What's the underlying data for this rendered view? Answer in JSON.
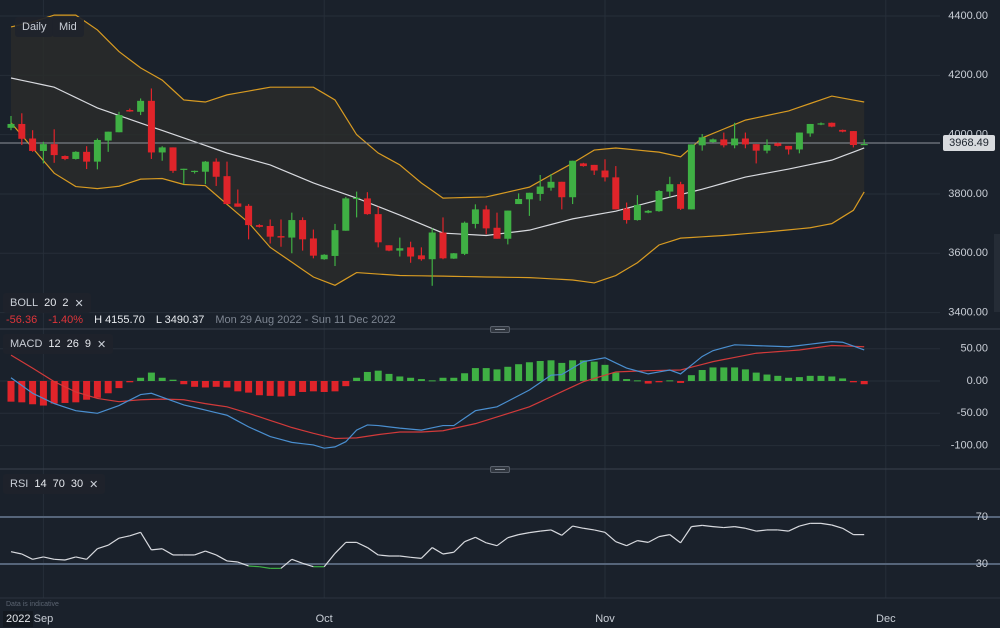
{
  "toolbar": {
    "interval_label": "Daily",
    "price_type_label": "Mid"
  },
  "indicators": {
    "boll": {
      "name": "BOLL",
      "period": "20",
      "stddev": "2",
      "close_icon": "close-icon"
    },
    "macd": {
      "name": "MACD",
      "fast": "12",
      "slow": "26",
      "signal": "9",
      "close_icon": "close-icon"
    },
    "rsi": {
      "name": "RSI",
      "period": "14",
      "overbought": "70",
      "oversold": "30",
      "close_icon": "close-icon"
    }
  },
  "summary": {
    "change": "-56.36",
    "change_pct": "-1.40%",
    "high": "H 4155.70",
    "low": "L 3490.37",
    "range": "Mon 29 Aug 2022 - Sun 11 Dec 2022"
  },
  "current_price": "3968.49",
  "footer": {
    "disclaimer": "Data is indicative",
    "year": "2022"
  },
  "colors": {
    "background": "#1a212b",
    "up": "#3fb044",
    "down": "#e0242a",
    "band": "#d89b22",
    "band_mid": "#d8dadf",
    "macd": "#4a8fd0",
    "signal": "#d23a3a",
    "rsi": "#d8dadf",
    "rsi_oversold": "#3fb044",
    "level_line": "#56657a",
    "grid": "#262e39"
  },
  "chart_data": [
    {
      "type": "candlestick",
      "panel": "price",
      "x_ticks": [
        "Sep",
        "Oct",
        "Nov",
        "Dec"
      ],
      "y_ticks": [
        "4400.00",
        "4200.00",
        "4000.00",
        "3800.00",
        "3600.00",
        "3400.00"
      ],
      "ylim": [
        3400,
        4400
      ],
      "grid": true,
      "candles_ohlc": [
        [
          4023,
          4063,
          4015,
          4036
        ],
        [
          4036,
          4072,
          3965,
          3986
        ],
        [
          3987,
          4015,
          3942,
          3945
        ],
        [
          3945,
          3976,
          3903,
          3968
        ],
        [
          3968,
          4018,
          3905,
          3931
        ],
        [
          3928,
          3930,
          3914,
          3918
        ],
        [
          3918,
          3944,
          3916,
          3942
        ],
        [
          3942,
          3961,
          3884,
          3909
        ],
        [
          3909,
          3987,
          3883,
          3982
        ],
        [
          3980,
          4010,
          3942,
          4010
        ],
        [
          4008,
          4077,
          4008,
          4066
        ],
        [
          4083,
          4088,
          4077,
          4078
        ],
        [
          4077,
          4122,
          4066,
          4114
        ],
        [
          4114,
          4155.7,
          3918,
          3940
        ],
        [
          3940,
          3961,
          3912,
          3957
        ],
        [
          3957,
          3957,
          3871,
          3878
        ],
        [
          3883,
          3885,
          3833,
          3885
        ],
        [
          3874,
          3879,
          3869,
          3878
        ],
        [
          3875,
          3911,
          3833,
          3909
        ],
        [
          3909,
          3920,
          3827,
          3858
        ],
        [
          3860,
          3909,
          3766,
          3766
        ],
        [
          3768,
          3815,
          3757,
          3757
        ],
        [
          3760,
          3766,
          3647,
          3695
        ],
        [
          3695,
          3698,
          3687,
          3689
        ],
        [
          3692,
          3714,
          3633,
          3656
        ],
        [
          3658,
          3714,
          3622,
          3653
        ],
        [
          3653,
          3737,
          3600,
          3712
        ],
        [
          3712,
          3721,
          3609,
          3647
        ],
        [
          3650,
          3680,
          3583,
          3592
        ],
        [
          3580,
          3597,
          3578,
          3595
        ],
        [
          3591,
          3699,
          3557,
          3678
        ],
        [
          3676,
          3790,
          3676,
          3785
        ],
        [
          3783,
          3808,
          3721,
          3787
        ],
        [
          3785,
          3806,
          3730,
          3732
        ],
        [
          3732,
          3757,
          3620,
          3637
        ],
        [
          3627,
          3627,
          3607,
          3609
        ],
        [
          3609,
          3653,
          3589,
          3617
        ],
        [
          3620,
          3639,
          3568,
          3589
        ],
        [
          3593,
          3620,
          3575,
          3580
        ],
        [
          3580,
          3684,
          3490.37,
          3670
        ],
        [
          3670,
          3721,
          3580,
          3583
        ],
        [
          3582,
          3601,
          3581,
          3600
        ],
        [
          3598,
          3707,
          3594,
          3703
        ],
        [
          3699,
          3765,
          3684,
          3748
        ],
        [
          3748,
          3761,
          3664,
          3684
        ],
        [
          3686,
          3737,
          3649,
          3649
        ],
        [
          3649,
          3744,
          3630,
          3744
        ],
        [
          3766,
          3802,
          3766,
          3783
        ],
        [
          3782,
          3804,
          3726,
          3804
        ],
        [
          3800,
          3864,
          3777,
          3825
        ],
        [
          3821,
          3867,
          3811,
          3841
        ],
        [
          3841,
          3841,
          3748,
          3789
        ],
        [
          3789,
          3912,
          3766,
          3912
        ],
        [
          3903,
          3905,
          3892,
          3894
        ],
        [
          3898,
          3898,
          3864,
          3879
        ],
        [
          3879,
          3917,
          3842,
          3856
        ],
        [
          3856,
          3894,
          3748,
          3748
        ],
        [
          3751,
          3771,
          3700,
          3712
        ],
        [
          3712,
          3796,
          3710,
          3763
        ],
        [
          3737,
          3746,
          3735,
          3743
        ],
        [
          3742,
          3813,
          3740,
          3810
        ],
        [
          3808,
          3858,
          3789,
          3833
        ],
        [
          3833,
          3841,
          3746,
          3750
        ],
        [
          3748,
          3967,
          3748,
          3967
        ],
        [
          3964,
          4002,
          3946,
          3991
        ],
        [
          3975,
          3987,
          3973,
          3984
        ],
        [
          3984,
          4007,
          3957,
          3964
        ],
        [
          3964,
          4040,
          3954,
          3987
        ],
        [
          3987,
          4007,
          3954,
          3967
        ],
        [
          3968,
          3968,
          3903,
          3946
        ],
        [
          3946,
          3984,
          3937,
          3965
        ],
        [
          3971,
          3973,
          3960,
          3962
        ],
        [
          3962,
          3962,
          3933,
          3950
        ],
        [
          3950,
          4007,
          3937,
          4007
        ],
        [
          4004,
          4036,
          3993,
          4036
        ],
        [
          4035,
          4041,
          4032,
          4038
        ],
        [
          4040,
          4041,
          4025,
          4027
        ],
        [
          4016,
          4017,
          4008,
          4010
        ],
        [
          4012,
          4012,
          3957,
          3965
        ],
        [
          3966,
          3984,
          3965,
          3968.49
        ]
      ],
      "bollinger_upper": [
        4363,
        null,
        4380,
        null,
        4403,
        null,
        4403,
        null,
        4353,
        null,
        4280,
        null,
        4225,
        null,
        4184,
        null,
        4117,
        null,
        4110,
        null,
        4134,
        null,
        null,
        null,
        4160,
        null,
        null,
        null,
        4160,
        null,
        4117,
        null,
        4000,
        null,
        3938,
        null,
        3898,
        null,
        3837,
        null,
        3786,
        null,
        null,
        null,
        3790,
        null,
        null,
        null,
        3823,
        null,
        3864,
        null,
        3904,
        null,
        3948,
        null,
        3955,
        null,
        null,
        null,
        3941,
        null,
        3925,
        null,
        3989,
        null,
        null,
        null,
        4049,
        null,
        null,
        null,
        4080,
        null,
        null,
        null,
        4130,
        null,
        null,
        4110
      ],
      "bollinger_mid": [
        4191,
        null,
        null,
        null,
        4160,
        null,
        null,
        null,
        4090,
        null,
        null,
        null,
        4039,
        null,
        null,
        null,
        3989,
        null,
        null,
        null,
        3938,
        null,
        null,
        null,
        3898,
        null,
        null,
        null,
        3837,
        null,
        null,
        null,
        3786,
        null,
        null,
        null,
        3729,
        null,
        null,
        null,
        3668,
        null,
        null,
        null,
        3660,
        null,
        null,
        null,
        3678,
        null,
        null,
        null,
        3716,
        null,
        null,
        null,
        3742,
        null,
        null,
        null,
        3780,
        null,
        null,
        null,
        3816,
        null,
        null,
        null,
        3857,
        null,
        null,
        null,
        3884,
        null,
        null,
        null,
        3914,
        null,
        null,
        3955
      ],
      "bollinger_lower": [
        4040,
        null,
        3955,
        null,
        3870,
        null,
        3825,
        null,
        3818,
        null,
        3826,
        null,
        3850,
        null,
        3852,
        null,
        3832,
        null,
        3828,
        null,
        3765,
        null,
        3703,
        null,
        3620,
        null,
        3570,
        null,
        3520,
        null,
        3492,
        null,
        3535,
        null,
        null,
        null,
        3525,
        null,
        null,
        null,
        3523,
        null,
        null,
        null,
        3520,
        null,
        null,
        null,
        3518,
        null,
        null,
        null,
        3510,
        null,
        3500,
        null,
        3525,
        null,
        3568,
        null,
        3628,
        null,
        3651,
        null,
        null,
        null,
        3660,
        null,
        null,
        null,
        3672,
        null,
        null,
        null,
        3686,
        null,
        3700,
        null,
        3745,
        3807
      ]
    },
    {
      "type": "bar+line",
      "panel": "macd",
      "y_ticks": [
        "50.00",
        "0.00",
        "-50.00",
        "-100.00"
      ],
      "ylim": [
        -120,
        70
      ],
      "histogram": [
        -32,
        -33,
        -36,
        -38,
        -35,
        -34,
        -33,
        -29,
        -26,
        -19,
        -11,
        -2,
        5,
        13,
        5,
        2,
        -5,
        -9,
        -10,
        -9,
        -10,
        -16,
        -18,
        -22,
        -23,
        -24,
        -23,
        -17,
        -16,
        -17,
        -16,
        -8,
        5,
        14,
        16,
        11,
        7,
        5,
        3,
        1,
        5,
        5,
        12,
        20,
        20,
        18,
        22,
        26,
        29,
        31,
        32,
        28,
        32,
        32,
        30,
        25,
        13,
        3,
        1,
        -4,
        -2,
        1,
        -3,
        9,
        17,
        21,
        21,
        21,
        18,
        13,
        10,
        8,
        5,
        6,
        8,
        8,
        7,
        4,
        -2,
        -5
      ],
      "macd": [
        5,
        null,
        -19,
        null,
        -35,
        null,
        -46,
        null,
        -50,
        null,
        -38,
        null,
        -21,
        -19,
        -25,
        null,
        -37,
        null,
        -45,
        null,
        -53,
        null,
        -71,
        null,
        -86,
        null,
        -95,
        null,
        -99,
        -104,
        -102,
        -94,
        -76,
        -68,
        -69,
        null,
        -73,
        null,
        -76,
        null,
        -69,
        -69,
        null,
        -46,
        null,
        -40,
        null,
        null,
        -14,
        null,
        9,
        10,
        null,
        30,
        null,
        36,
        null,
        20,
        null,
        11,
        null,
        17,
        11,
        null,
        38,
        47,
        null,
        56,
        null,
        null,
        null,
        null,
        53,
        null,
        null,
        null,
        61,
        60,
        null,
        48
      ],
      "signal": [
        40,
        null,
        20,
        null,
        -1,
        null,
        -17,
        null,
        -27,
        null,
        -32,
        null,
        -29,
        null,
        -28,
        null,
        -29,
        null,
        -35,
        null,
        -40,
        null,
        -50,
        null,
        -61,
        null,
        -72,
        null,
        -81,
        null,
        -89,
        null,
        -88,
        null,
        -83,
        null,
        -79,
        null,
        -79,
        null,
        -77,
        null,
        null,
        -66,
        null,
        null,
        null,
        null,
        -40,
        null,
        null,
        null,
        null,
        -1,
        null,
        null,
        14,
        null,
        null,
        16,
        null,
        null,
        17,
        null,
        null,
        30,
        null,
        null,
        null,
        43,
        null,
        null,
        null,
        48,
        null,
        null,
        55,
        null,
        null,
        53
      ]
    },
    {
      "type": "line",
      "panel": "rsi",
      "y_ticks": [
        "70",
        "30"
      ],
      "levels": [
        70,
        30
      ],
      "values": [
        40.5,
        38.5,
        34,
        36,
        34,
        33.4,
        36,
        34,
        43,
        46,
        52,
        54,
        57,
        42,
        43,
        37.7,
        37.7,
        37.7,
        41,
        37.7,
        32.6,
        31.7,
        28.3,
        27.7,
        26.3,
        26.3,
        34,
        30.6,
        27.7,
        27.7,
        39,
        48.4,
        48.4,
        44,
        37.7,
        36.8,
        36.8,
        35.7,
        34.8,
        44,
        38.5,
        40,
        49,
        52.7,
        48,
        45.6,
        52.4,
        55,
        56.7,
        58,
        59,
        54.4,
        62.3,
        60.4,
        59,
        57,
        49,
        45.6,
        49.9,
        48.4,
        53.3,
        55,
        48,
        61.8,
        62.9,
        61.8,
        61,
        61.8,
        60.4,
        58,
        59,
        59,
        58,
        62.3,
        64.6,
        64.6,
        63.2,
        60.4,
        55,
        55
      ]
    }
  ]
}
